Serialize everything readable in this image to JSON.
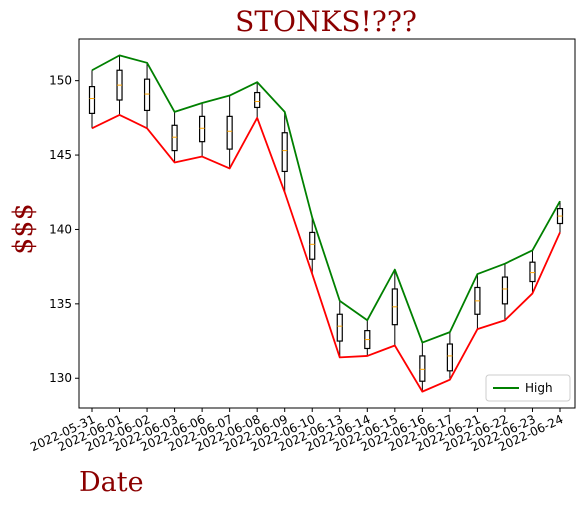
{
  "chart_data": {
    "type": "line",
    "title": "STONKS!???",
    "xlabel": "Date",
    "ylabel": "$$$",
    "categories": [
      "2022-05-31",
      "2022-06-01",
      "2022-06-02",
      "2022-06-03",
      "2022-06-06",
      "2022-06-07",
      "2022-06-08",
      "2022-06-09",
      "2022-06-10",
      "2022-06-13",
      "2022-06-14",
      "2022-06-15",
      "2022-06-16",
      "2022-06-17",
      "2022-06-21",
      "2022-06-22",
      "2022-06-23",
      "2022-06-24"
    ],
    "ylim": [
      128.0,
      152.8
    ],
    "yticks": [
      130,
      135,
      140,
      145,
      150
    ],
    "grid": false,
    "legend": {
      "position": "lower-right",
      "entries": [
        "High"
      ]
    },
    "series": [
      {
        "name": "High",
        "color": "#008000",
        "values": [
          150.7,
          151.7,
          151.2,
          147.9,
          148.5,
          149.0,
          149.9,
          147.9,
          140.8,
          135.2,
          133.9,
          137.3,
          132.4,
          133.1,
          137.0,
          137.7,
          138.6,
          141.9
        ]
      },
      {
        "color": "#ff0000",
        "values": [
          146.8,
          147.7,
          146.8,
          144.5,
          144.9,
          144.1,
          147.5,
          142.5,
          137.0,
          131.4,
          131.5,
          132.2,
          129.1,
          129.9,
          133.3,
          133.9,
          135.7,
          139.8
        ]
      }
    ],
    "box": {
      "color": "#000000",
      "median_color": "#ffa500",
      "q1": [
        147.8,
        148.7,
        148.0,
        145.3,
        145.9,
        145.4,
        148.2,
        143.9,
        138.0,
        132.5,
        132.0,
        133.6,
        129.8,
        130.5,
        134.3,
        135.0,
        136.5,
        140.4
      ],
      "median": [
        148.8,
        149.7,
        149.1,
        146.2,
        146.8,
        146.6,
        148.6,
        145.3,
        139.0,
        133.5,
        132.6,
        134.8,
        130.6,
        131.5,
        135.2,
        136.0,
        137.1,
        140.9
      ],
      "q3": [
        149.6,
        150.7,
        150.1,
        147.0,
        147.6,
        147.6,
        149.2,
        146.5,
        139.8,
        134.3,
        133.2,
        136.0,
        131.5,
        132.3,
        136.1,
        136.8,
        137.8,
        141.4
      ]
    }
  }
}
